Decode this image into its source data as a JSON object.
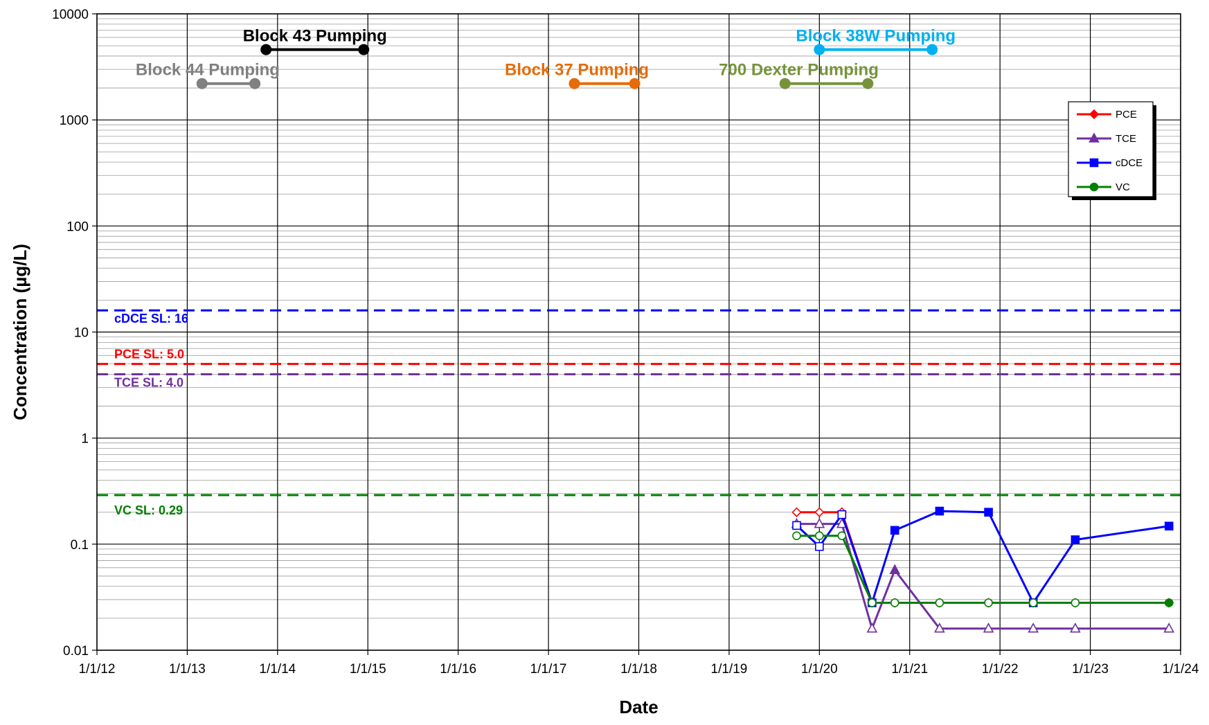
{
  "chart_data": {
    "type": "line",
    "xlabel": "Date",
    "ylabel": "Concentration (µg/L)",
    "y_scale": "log",
    "ylim": [
      0.01,
      10000
    ],
    "xlim": [
      "2012-01-01",
      "2024-01-01"
    ],
    "x_tick_labels": [
      "1/1/12",
      "1/1/13",
      "1/1/14",
      "1/1/15",
      "1/1/16",
      "1/1/17",
      "1/1/18",
      "1/1/19",
      "1/1/20",
      "1/1/21",
      "1/1/22",
      "1/1/23",
      "1/1/24"
    ],
    "y_tick_labels": [
      "0.01",
      "0.1",
      "1",
      "10",
      "100",
      "1000",
      "10000"
    ],
    "grid": true,
    "legend": {
      "placement": "top-right",
      "entries": [
        "PCE",
        "TCE",
        "cDCE",
        "VC"
      ]
    },
    "colors": {
      "PCE": "#ff0000",
      "TCE": "#7030a0",
      "cDCE": "#0000ff",
      "VC": "#008000"
    },
    "series": [
      {
        "name": "PCE",
        "marker": "diamond",
        "points": [
          {
            "x": "2019-10-01",
            "y": 0.2,
            "nd": true
          },
          {
            "x": "2020-01-01",
            "y": 0.2,
            "nd": true
          },
          {
            "x": "2020-04-01",
            "y": 0.2,
            "nd": true
          },
          {
            "x": "2020-08-01",
            "y": 0.028,
            "nd": true
          },
          {
            "x": "2020-11-01",
            "y": 0.028,
            "nd": true
          },
          {
            "x": "2021-05-01",
            "y": 0.028,
            "nd": true
          },
          {
            "x": "2021-11-15",
            "y": 0.028,
            "nd": true
          },
          {
            "x": "2022-05-15",
            "y": 0.028,
            "nd": true
          },
          {
            "x": "2022-11-01",
            "y": 0.028,
            "nd": true
          },
          {
            "x": "2023-11-15",
            "y": 0.028,
            "nd": true
          }
        ]
      },
      {
        "name": "TCE",
        "marker": "triangle",
        "points": [
          {
            "x": "2019-10-01",
            "y": 0.155,
            "nd": true
          },
          {
            "x": "2020-01-01",
            "y": 0.155,
            "nd": true
          },
          {
            "x": "2020-04-01",
            "y": 0.155,
            "nd": true
          },
          {
            "x": "2020-08-01",
            "y": 0.016,
            "nd": true
          },
          {
            "x": "2020-11-01",
            "y": 0.057,
            "nd": false
          },
          {
            "x": "2021-05-01",
            "y": 0.016,
            "nd": true
          },
          {
            "x": "2021-11-15",
            "y": 0.016,
            "nd": true
          },
          {
            "x": "2022-05-15",
            "y": 0.016,
            "nd": true
          },
          {
            "x": "2022-11-01",
            "y": 0.016,
            "nd": true
          },
          {
            "x": "2023-11-15",
            "y": 0.016,
            "nd": true
          }
        ]
      },
      {
        "name": "cDCE",
        "marker": "square",
        "points": [
          {
            "x": "2019-10-01",
            "y": 0.15,
            "nd": true
          },
          {
            "x": "2020-01-01",
            "y": 0.095,
            "nd": true
          },
          {
            "x": "2020-04-01",
            "y": 0.19,
            "nd": true
          },
          {
            "x": "2020-08-01",
            "y": 0.028,
            "nd": true
          },
          {
            "x": "2020-11-01",
            "y": 0.135,
            "nd": false
          },
          {
            "x": "2021-05-01",
            "y": 0.205,
            "nd": false
          },
          {
            "x": "2021-11-15",
            "y": 0.2,
            "nd": false
          },
          {
            "x": "2022-05-15",
            "y": 0.028,
            "nd": true
          },
          {
            "x": "2022-11-01",
            "y": 0.11,
            "nd": false
          },
          {
            "x": "2023-11-15",
            "y": 0.148,
            "nd": false
          }
        ]
      },
      {
        "name": "VC",
        "marker": "circle",
        "points": [
          {
            "x": "2019-10-01",
            "y": 0.12,
            "nd": true
          },
          {
            "x": "2020-01-01",
            "y": 0.12,
            "nd": true
          },
          {
            "x": "2020-04-01",
            "y": 0.12,
            "nd": true
          },
          {
            "x": "2020-08-01",
            "y": 0.028,
            "nd": true
          },
          {
            "x": "2020-11-01",
            "y": 0.028,
            "nd": true
          },
          {
            "x": "2021-05-01",
            "y": 0.028,
            "nd": true
          },
          {
            "x": "2021-11-15",
            "y": 0.028,
            "nd": true
          },
          {
            "x": "2022-05-15",
            "y": 0.028,
            "nd": true
          },
          {
            "x": "2022-11-01",
            "y": 0.028,
            "nd": true
          },
          {
            "x": "2023-11-15",
            "y": 0.028,
            "nd": false
          }
        ]
      }
    ],
    "screening_levels": [
      {
        "label": "cDCE SL: 16",
        "value": 16,
        "color": "#0000ff"
      },
      {
        "label": "PCE SL: 5.0",
        "value": 5.0,
        "color": "#ff0000"
      },
      {
        "label": "TCE SL: 4.0",
        "value": 4.0,
        "color": "#7030a0"
      },
      {
        "label": "VC SL: 0.29",
        "value": 0.29,
        "color": "#008000"
      }
    ],
    "pumping_periods": [
      {
        "label": "Block 44 Pumping",
        "start": "2013-03-01",
        "end": "2013-10-01",
        "level": 2200,
        "color": "#808080"
      },
      {
        "label": "Block 43 Pumping",
        "start": "2013-11-15",
        "end": "2014-12-15",
        "level": 4600,
        "color": "#000000"
      },
      {
        "label": "Block 37 Pumping",
        "start": "2017-04-15",
        "end": "2017-12-15",
        "level": 2200,
        "color": "#e46c0a"
      },
      {
        "label": "700 Dexter Pumping",
        "start": "2019-08-15",
        "end": "2020-07-15",
        "level": 2200,
        "color": "#76933c"
      },
      {
        "label": "Block 38W Pumping",
        "start": "2020-01-01",
        "end": "2021-04-01",
        "level": 4600,
        "color": "#00b0f0"
      }
    ]
  }
}
